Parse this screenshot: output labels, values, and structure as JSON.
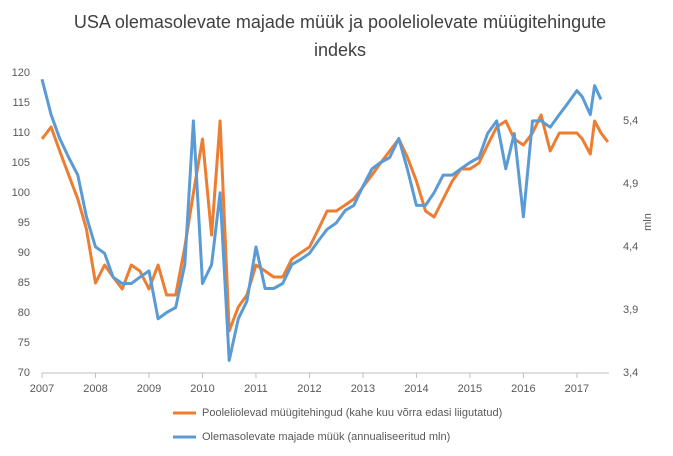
{
  "chart_data": {
    "type": "line",
    "title": "USA olemasolevate majade müük ja pooleliolevate müügitehingute indeks",
    "y2label": "mln",
    "x": [
      2007,
      2007.17,
      2007.33,
      2007.5,
      2007.67,
      2007.83,
      2008,
      2008.17,
      2008.33,
      2008.5,
      2008.67,
      2008.83,
      2009,
      2009.17,
      2009.33,
      2009.5,
      2009.67,
      2009.83,
      2010,
      2010.17,
      2010.33,
      2010.5,
      2010.67,
      2010.83,
      2011,
      2011.17,
      2011.33,
      2011.5,
      2011.67,
      2011.83,
      2012,
      2012.17,
      2012.33,
      2012.5,
      2012.67,
      2012.83,
      2013,
      2013.17,
      2013.33,
      2013.5,
      2013.67,
      2013.83,
      2014,
      2014.17,
      2014.33,
      2014.5,
      2014.67,
      2014.83,
      2015,
      2015.17,
      2015.33,
      2015.5,
      2015.67,
      2015.83,
      2016,
      2016.17,
      2016.33,
      2016.5,
      2016.67,
      2016.83,
      2017,
      2017.1,
      2017.25,
      2017.33,
      2017.45,
      2017.58
    ],
    "series": [
      {
        "name": "Pooleliolevad müügitehingud (kahe kuu võrra edasi liigutatud)",
        "color": "#ED7D31",
        "values": [
          109,
          111,
          107,
          103,
          99,
          94,
          85,
          88,
          86,
          84,
          88,
          87,
          84,
          88,
          83,
          83,
          91,
          100,
          109,
          93,
          112,
          77,
          81,
          83,
          88,
          87,
          86,
          86,
          89,
          90,
          91,
          94,
          97,
          97,
          98,
          99,
          101,
          103,
          105,
          107,
          109,
          106,
          102,
          97,
          96,
          99,
          102,
          104,
          104,
          105,
          108,
          111,
          112,
          109,
          108,
          110,
          113,
          107,
          110,
          110,
          110,
          109,
          106.5,
          112,
          110,
          108.5
        ]
      },
      {
        "name": "Olemasolevate majade müük (annualiseeritud mln)",
        "color": "#5B9BD5",
        "axis": "y2",
        "values": [
          5.73,
          5.45,
          5.26,
          5.11,
          4.97,
          4.64,
          4.4,
          4.35,
          4.16,
          4.11,
          4.11,
          4.16,
          4.21,
          3.83,
          3.88,
          3.92,
          4.26,
          5.4,
          4.11,
          4.26,
          4.83,
          3.5,
          3.83,
          3.97,
          4.4,
          4.07,
          4.07,
          4.11,
          4.26,
          4.3,
          4.35,
          4.45,
          4.54,
          4.59,
          4.69,
          4.73,
          4.88,
          5.02,
          5.07,
          5.11,
          5.26,
          5.02,
          4.73,
          4.73,
          4.83,
          4.97,
          4.97,
          5.02,
          5.07,
          5.11,
          5.3,
          5.4,
          5.02,
          5.3,
          4.64,
          5.4,
          5.4,
          5.35,
          5.45,
          5.54,
          5.64,
          5.59,
          5.45,
          5.68,
          5.57,
          null
        ]
      }
    ],
    "xlim": [
      2007,
      2017.6
    ],
    "xticks": [
      2007,
      2008,
      2009,
      2010,
      2011,
      2012,
      2013,
      2014,
      2015,
      2016,
      2017
    ],
    "ylim": [
      70,
      120
    ],
    "yticks": [
      70,
      75,
      80,
      85,
      90,
      95,
      100,
      105,
      110,
      115,
      120
    ],
    "y2lim": [
      3.4,
      5.78
    ],
    "y2ticks": [
      {
        "value": 3.4,
        "label": "3,4"
      },
      {
        "value": 3.9,
        "label": "3,9"
      },
      {
        "value": 4.4,
        "label": "4,4"
      },
      {
        "value": 4.9,
        "label": "4,9"
      },
      {
        "value": 5.4,
        "label": "5,4"
      }
    ],
    "grid": false
  }
}
